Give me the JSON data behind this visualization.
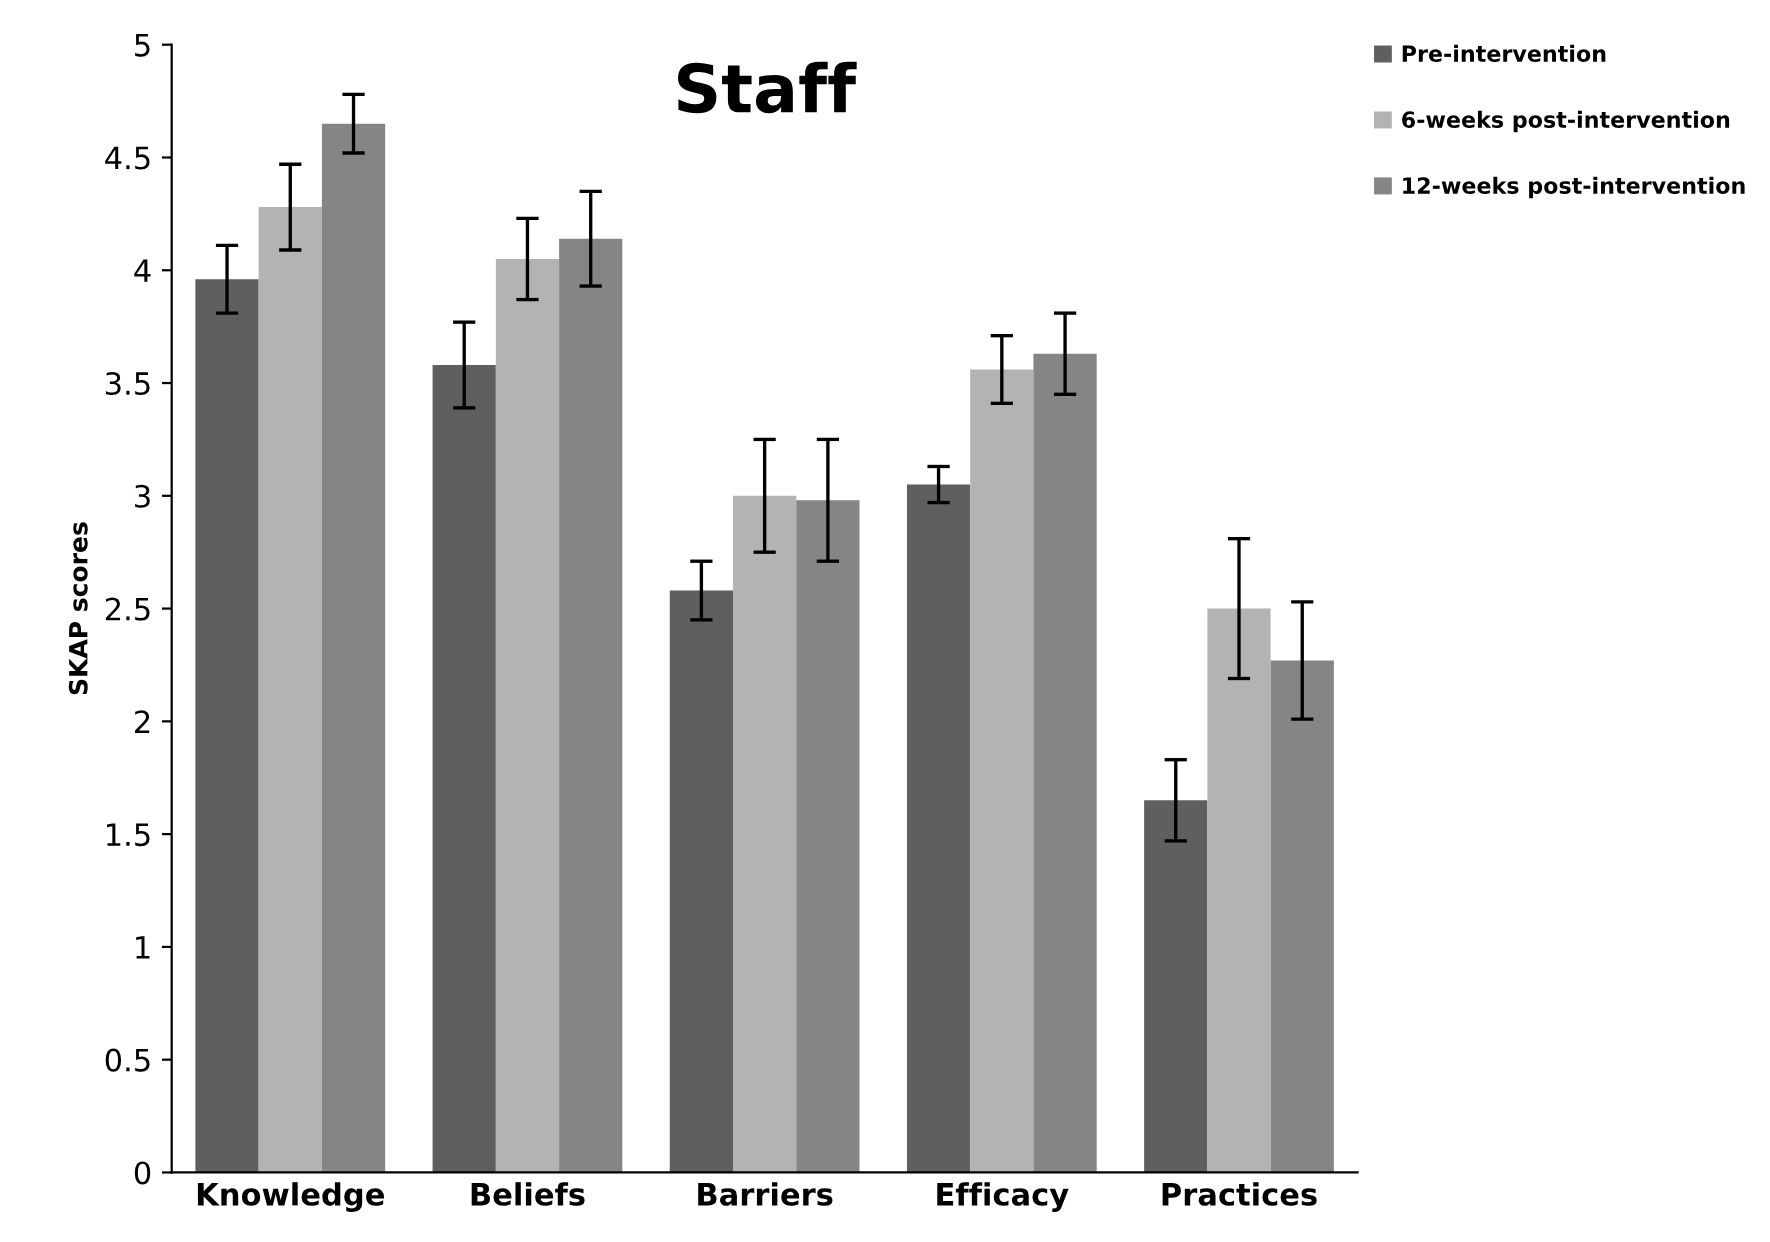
{
  "chart_data": {
    "type": "bar",
    "title": "Staff",
    "ylabel": "SKAP scores",
    "categories": [
      "Knowledge",
      "Beliefs",
      "Barriers",
      "Efficacy",
      "Practices"
    ],
    "series": [
      {
        "name": "Pre-intervention",
        "color": "#5f5f5f",
        "values": [
          3.96,
          3.58,
          2.58,
          3.05,
          1.65
        ],
        "errors": [
          0.15,
          0.19,
          0.13,
          0.08,
          0.18
        ]
      },
      {
        "name": "6-weeks post-intervention",
        "color": "#b3b3b3",
        "values": [
          4.28,
          4.05,
          3.0,
          3.56,
          2.5
        ],
        "errors": [
          0.19,
          0.18,
          0.25,
          0.15,
          0.31
        ]
      },
      {
        "name": "12-weeks post-intervention",
        "color": "#858585",
        "values": [
          4.65,
          4.14,
          2.98,
          3.63,
          2.27
        ],
        "errors": [
          0.13,
          0.21,
          0.27,
          0.18,
          0.26
        ]
      }
    ],
    "ylim": [
      0,
      5
    ],
    "yticks": [
      0,
      0.5,
      1,
      1.5,
      2,
      2.5,
      3,
      3.5,
      4,
      4.5,
      5
    ],
    "grid": false,
    "legend": "top right"
  }
}
